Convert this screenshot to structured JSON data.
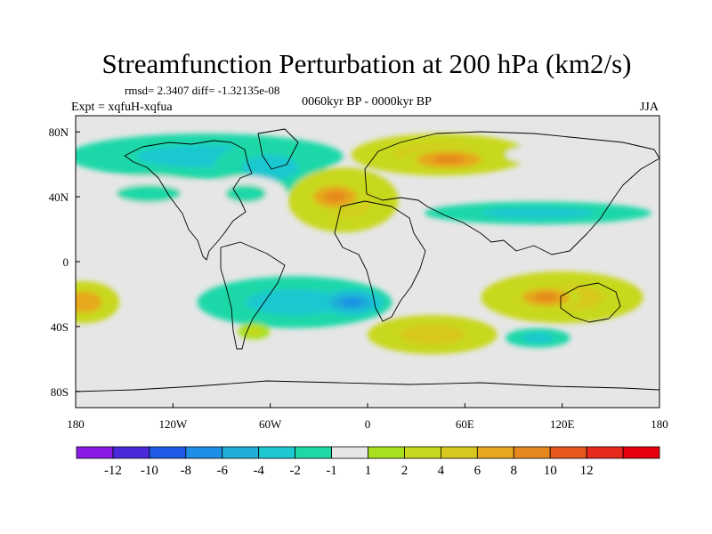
{
  "chart_data": {
    "type": "heatmap",
    "title": "Streamfunction Perturbation at 200 hPa (km2/s)",
    "stats_label": "rmsd= 2.3407 diff= -1.32135e-08",
    "expt_label": "Expt = xqfuH-xqfua",
    "period_label": "0060kyr BP - 0000kyr BP",
    "season_label": "JJA",
    "x_ticks": [
      {
        "value": -180,
        "label": "180"
      },
      {
        "value": -120,
        "label": "120W"
      },
      {
        "value": -60,
        "label": "60W"
      },
      {
        "value": 0,
        "label": "0"
      },
      {
        "value": 60,
        "label": "60E"
      },
      {
        "value": 120,
        "label": "120E"
      },
      {
        "value": 180,
        "label": "180"
      }
    ],
    "y_ticks": [
      {
        "value": 80,
        "label": "80N"
      },
      {
        "value": 40,
        "label": "40N"
      },
      {
        "value": 0,
        "label": "0"
      },
      {
        "value": -40,
        "label": "40S"
      },
      {
        "value": -80,
        "label": "80S"
      }
    ],
    "xlim": [
      -180,
      180
    ],
    "ylim": [
      -90,
      90
    ],
    "colorbar": {
      "colors": [
        "#8b1ae6",
        "#4a2ad8",
        "#1e5ae6",
        "#1e8ee6",
        "#1eaed8",
        "#1ec8d0",
        "#1ed8a8",
        "#e6e6e6",
        "#a8e01e",
        "#c8d81e",
        "#d8c81e",
        "#e6a81e",
        "#e6881e",
        "#e6581e",
        "#e62a1e",
        "#e6000e"
      ],
      "labels": [
        "-12",
        "-10",
        "-8",
        "-6",
        "-4",
        "-2",
        "-1",
        "1",
        "2",
        "4",
        "6",
        "8",
        "10",
        "12"
      ]
    },
    "anomalies": [
      {
        "lon": -100,
        "lat": 65,
        "rx": 85,
        "ry": 14,
        "value": -3
      },
      {
        "lon": -60,
        "lat": 58,
        "rx": 35,
        "ry": 16,
        "value": -4
      },
      {
        "lon": -135,
        "lat": 42,
        "rx": 40,
        "ry": 11,
        "value": -2
      },
      {
        "lon": -75,
        "lat": 42,
        "rx": 25,
        "ry": 11,
        "value": -2
      },
      {
        "lon": -15,
        "lat": 38,
        "rx": 34,
        "ry": 20,
        "value": 4
      },
      {
        "lon": -20,
        "lat": 40,
        "rx": 20,
        "ry": 10,
        "value": 9
      },
      {
        "lon": 45,
        "lat": 66,
        "rx": 55,
        "ry": 13,
        "value": 5
      },
      {
        "lon": 50,
        "lat": 63,
        "rx": 30,
        "ry": 8,
        "value": 9
      },
      {
        "lon": 110,
        "lat": 66,
        "rx": 25,
        "ry": 6,
        "value": -1
      },
      {
        "lon": 105,
        "lat": 30,
        "rx": 70,
        "ry": 7,
        "value": -3
      },
      {
        "lon": -175,
        "lat": -25,
        "rx": 22,
        "ry": 13,
        "value": 6
      },
      {
        "lon": -45,
        "lat": -25,
        "rx": 60,
        "ry": 16,
        "value": -3
      },
      {
        "lon": -10,
        "lat": -25,
        "rx": 20,
        "ry": 8,
        "value": -7
      },
      {
        "lon": -70,
        "lat": -43,
        "rx": 10,
        "ry": 5,
        "value": 2
      },
      {
        "lon": 120,
        "lat": -22,
        "rx": 50,
        "ry": 16,
        "value": 4
      },
      {
        "lon": 110,
        "lat": -22,
        "rx": 22,
        "ry": 8,
        "value": 9
      },
      {
        "lon": 40,
        "lat": -45,
        "rx": 40,
        "ry": 12,
        "value": 4
      },
      {
        "lon": 105,
        "lat": -47,
        "rx": 20,
        "ry": 6,
        "value": -4
      }
    ]
  }
}
